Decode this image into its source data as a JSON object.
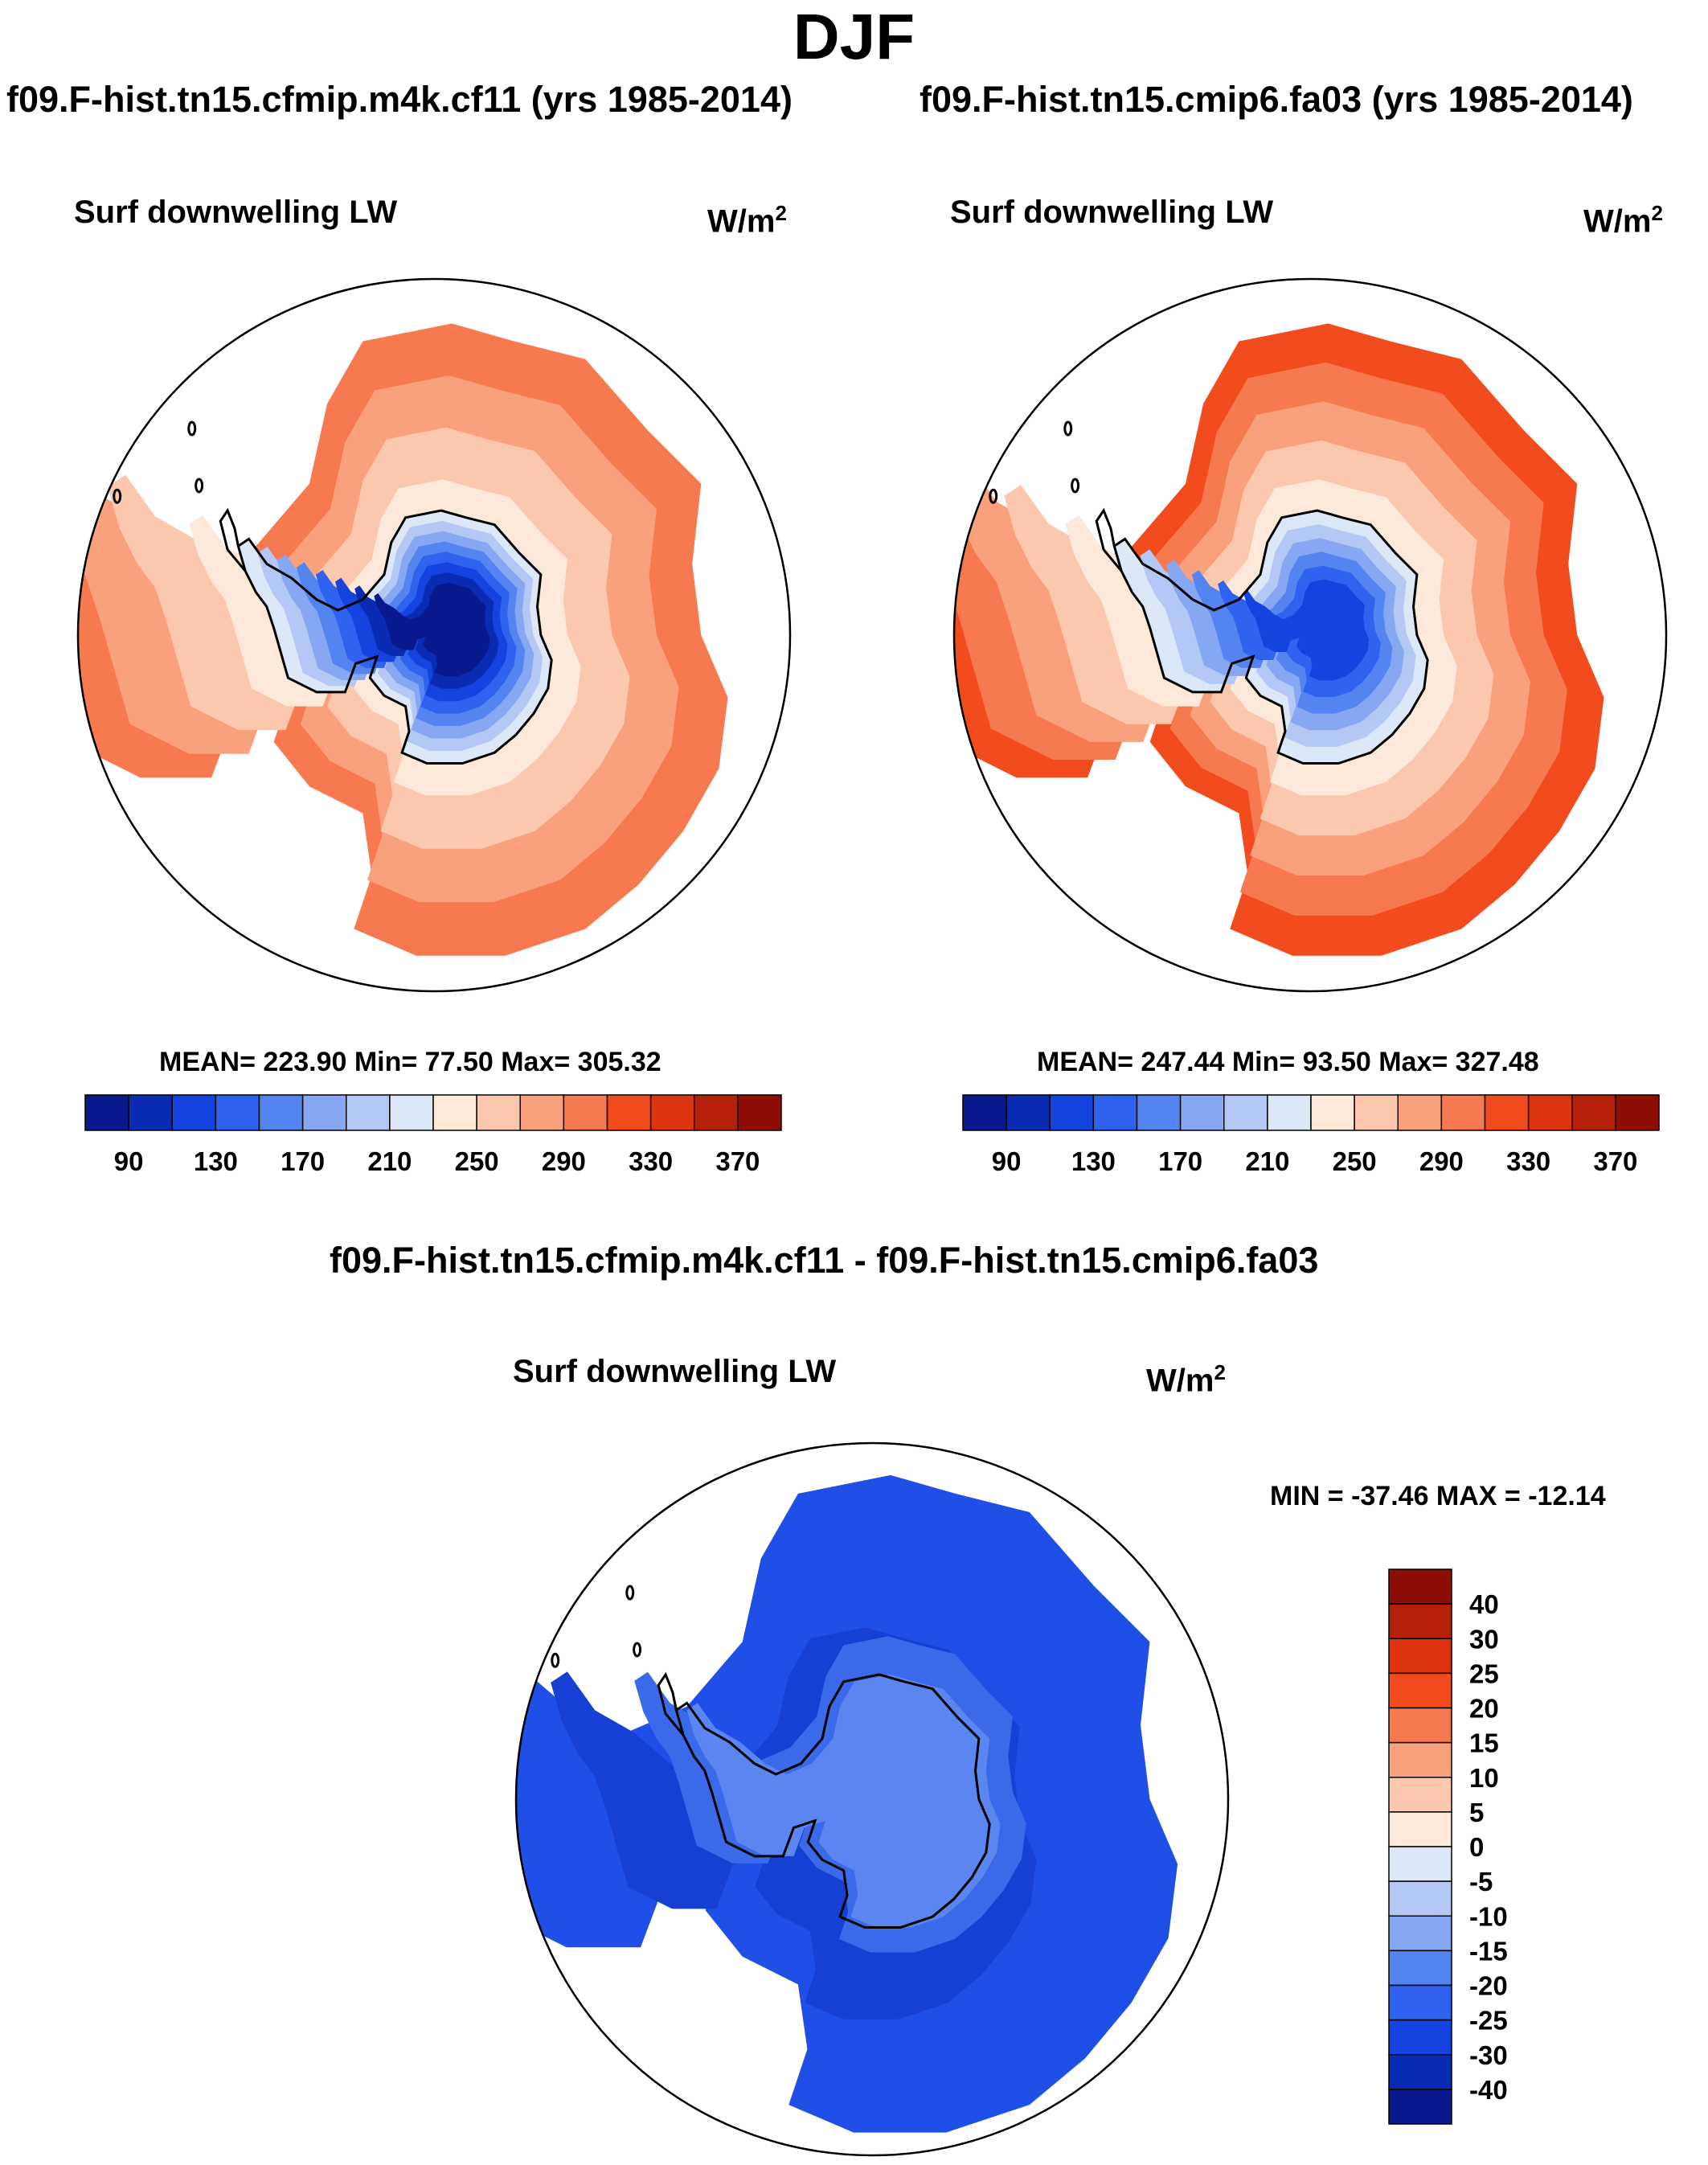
{
  "figure": {
    "title": "DJF",
    "panels": [
      {
        "case": "f09.F-hist.tn15.cfmip.m4k.cf11 (yrs 1985-2014)",
        "variable": "Surf downwelling LW",
        "units_base": "W/m",
        "units_exp": "2",
        "stats_text": "MEAN= 223.90  Min=  77.50  Max= 305.32"
      },
      {
        "case": "f09.F-hist.tn15.cmip6.fa03 (yrs 1985-2014)",
        "variable": "Surf downwelling LW",
        "units_base": "W/m",
        "units_exp": "2",
        "stats_text": "MEAN= 247.44  Min=  93.50  Max= 327.48"
      }
    ],
    "difference": {
      "title": "f09.F-hist.tn15.cfmip.m4k.cf11 - f09.F-hist.tn15.cmip6.fa03",
      "variable": "Surf downwelling LW",
      "units_base": "W/m",
      "units_exp": "2",
      "minmax_text": "MIN = -37.46 MAX = -12.14"
    }
  },
  "chart_data": [
    {
      "type": "heatmap",
      "projection": "south-polar-stereographic",
      "title": "f09.F-hist.tn15.cfmip.m4k.cf11 (yrs 1985-2014)",
      "variable": "Surf downwelling LW",
      "units": "W/m2",
      "mean": 223.9,
      "min": 77.5,
      "max": 305.32,
      "colorbar_levels": [
        80,
        90,
        110,
        130,
        150,
        170,
        190,
        210,
        230,
        250,
        270,
        290,
        310,
        330,
        350,
        370,
        390
      ],
      "colorbar_tick_labels": [
        "90",
        "130",
        "170",
        "210",
        "250",
        "290",
        "330",
        "370"
      ],
      "colorbar_colors": [
        "#07198c",
        "#0a2cb5",
        "#1543e0",
        "#2f62ef",
        "#5484f0",
        "#86a7f2",
        "#b3c8f5",
        "#dce8f8",
        "#fde8d9",
        "#fbc8ad",
        "#f9a07c",
        "#f6794f",
        "#f24c1e",
        "#de3412",
        "#b5200a",
        "#8e0d05"
      ],
      "field_contours": [
        {
          "level": 300,
          "color": "#f6794f"
        },
        {
          "level": 285,
          "color": "#f9a07c"
        },
        {
          "level": 270,
          "color": "#fbc8ad"
        },
        {
          "level": 255,
          "color": "#fde8d9"
        },
        {
          "level": 225,
          "color": "#dce8f8"
        },
        {
          "level": 205,
          "color": "#b3c8f5"
        },
        {
          "level": 185,
          "color": "#86a7f2"
        },
        {
          "level": 165,
          "color": "#5484f0"
        },
        {
          "level": 140,
          "color": "#2f62ef"
        },
        {
          "level": 120,
          "color": "#1543e0"
        },
        {
          "level": 100,
          "color": "#0a2cb5"
        },
        {
          "level": 85,
          "color": "#07198c"
        }
      ]
    },
    {
      "type": "heatmap",
      "projection": "south-polar-stereographic",
      "title": "f09.F-hist.tn15.cmip6.fa03 (yrs 1985-2014)",
      "variable": "Surf downwelling LW",
      "units": "W/m2",
      "mean": 247.44,
      "min": 93.5,
      "max": 327.48,
      "colorbar_levels": [
        80,
        90,
        110,
        130,
        150,
        170,
        190,
        210,
        230,
        250,
        270,
        290,
        310,
        330,
        350,
        370,
        390
      ],
      "colorbar_tick_labels": [
        "90",
        "130",
        "170",
        "210",
        "250",
        "290",
        "330",
        "370"
      ],
      "colorbar_colors": [
        "#07198c",
        "#0a2cb5",
        "#1543e0",
        "#2f62ef",
        "#5484f0",
        "#86a7f2",
        "#b3c8f5",
        "#dce8f8",
        "#fde8d9",
        "#fbc8ad",
        "#f9a07c",
        "#f6794f",
        "#f24c1e",
        "#de3412",
        "#b5200a",
        "#8e0d05"
      ],
      "field_contours": [
        {
          "level": 320,
          "color": "#f24c1e"
        },
        {
          "level": 305,
          "color": "#f6794f"
        },
        {
          "level": 290,
          "color": "#f9a07c"
        },
        {
          "level": 270,
          "color": "#fbc8ad"
        },
        {
          "level": 255,
          "color": "#fde8d9"
        },
        {
          "level": 230,
          "color": "#dce8f8"
        },
        {
          "level": 210,
          "color": "#b3c8f5"
        },
        {
          "level": 190,
          "color": "#86a7f2"
        },
        {
          "level": 165,
          "color": "#5484f0"
        },
        {
          "level": 140,
          "color": "#2f62ef"
        },
        {
          "level": 115,
          "color": "#1543e0"
        }
      ]
    },
    {
      "type": "heatmap",
      "projection": "south-polar-stereographic",
      "title": "f09.F-hist.tn15.cfmip.m4k.cf11 - f09.F-hist.tn15.cmip6.fa03",
      "variable": "Surf downwelling LW",
      "units": "W/m2",
      "min": -37.46,
      "max": -12.14,
      "colorbar_tick_labels": [
        "40",
        "30",
        "25",
        "20",
        "15",
        "10",
        "5",
        "0",
        "-5",
        "-10",
        "-15",
        "-20",
        "-25",
        "-30",
        "-40"
      ],
      "colorbar_colors_top_to_bottom": [
        "#8e0d05",
        "#b5200a",
        "#de3412",
        "#f24c1e",
        "#f6794f",
        "#f9a07c",
        "#fbc8ad",
        "#fde8d9",
        "#dce8f8",
        "#b3c8f5",
        "#86a7f2",
        "#5484f0",
        "#2f62ef",
        "#1543e0",
        "#0a2cb5",
        "#07198c"
      ],
      "field_contours": [
        {
          "level": -24,
          "color": "#1f4fe6"
        },
        {
          "level": -28,
          "color": "#1640d4"
        },
        {
          "level": -20,
          "color": "#3a6ae9"
        },
        {
          "level": -17,
          "color": "#5b86ef"
        }
      ]
    }
  ]
}
